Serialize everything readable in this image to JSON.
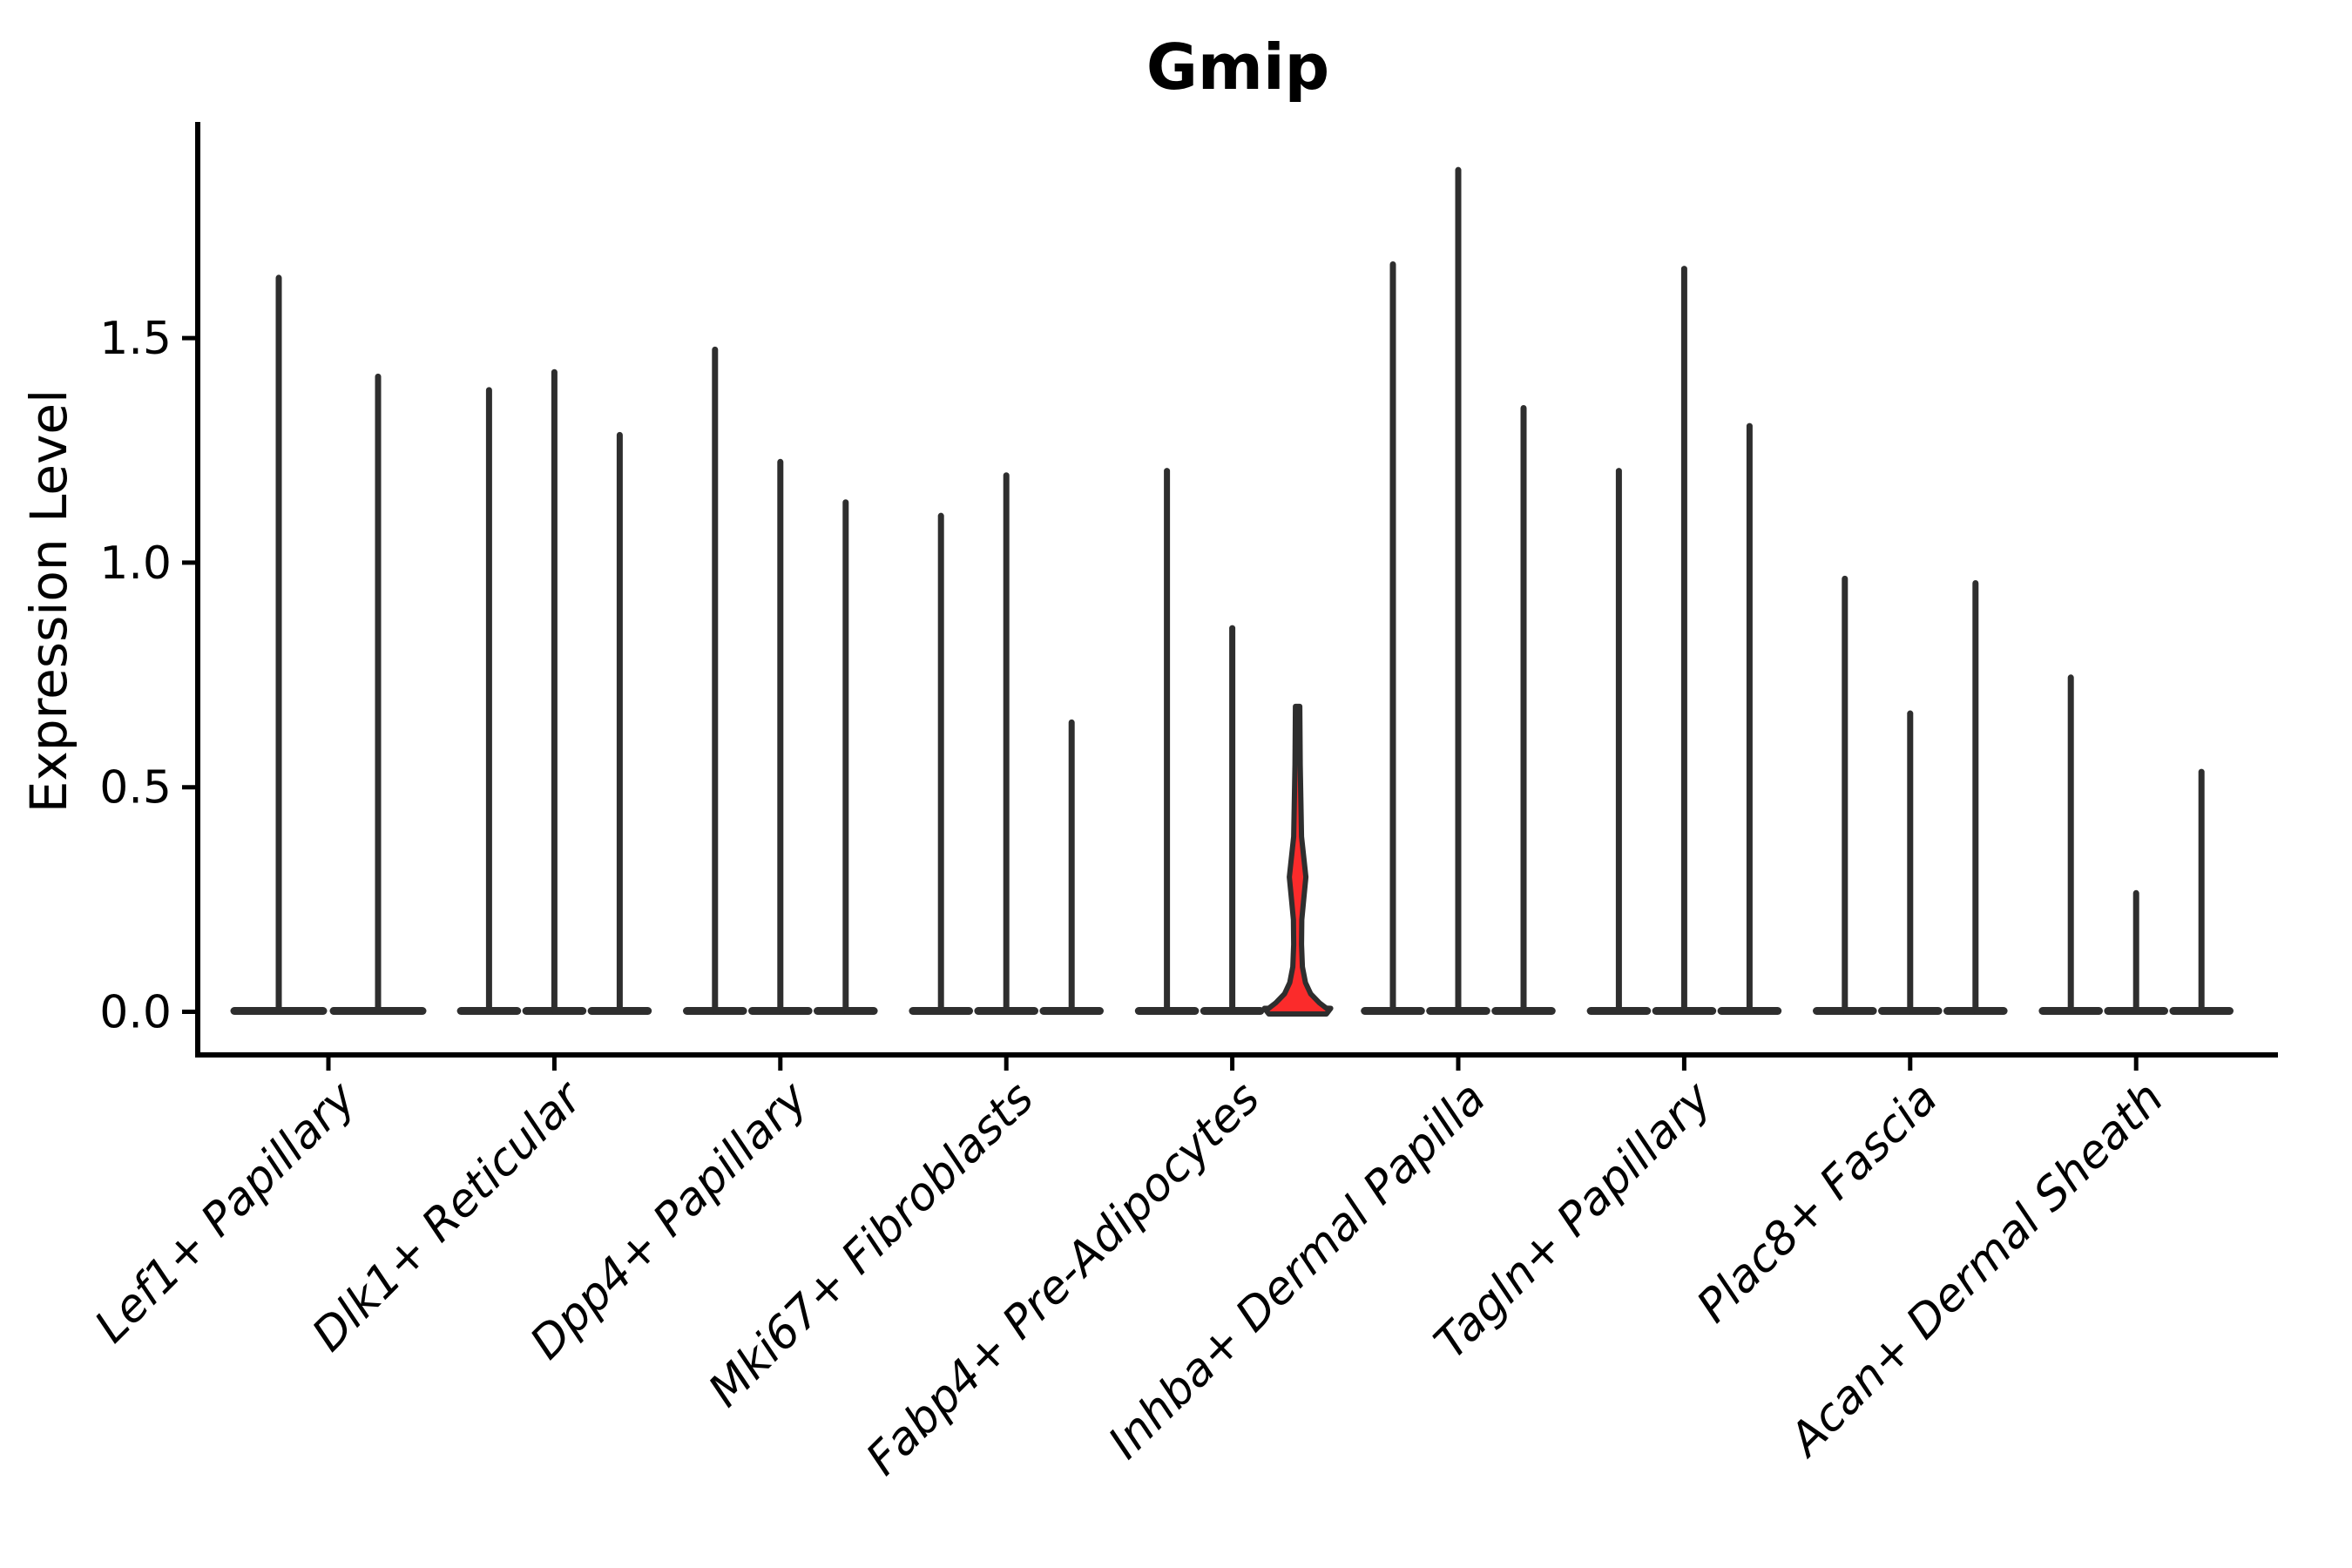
{
  "title": "Gmip",
  "chart_data": {
    "type": "violin",
    "title": "Gmip",
    "xlabel": "",
    "ylabel": "Expression Level",
    "ytick_labels": [
      "0.0",
      "0.5",
      "1.0",
      "1.5"
    ],
    "yticks": [
      0.0,
      0.5,
      1.0,
      1.5
    ],
    "ylim": [
      -0.096,
      1.98
    ],
    "grid": false,
    "legend": "none",
    "categories": [
      "Lef1+ Papillary",
      "Dlk1+ Reticular",
      "Dpp4+ Papillary",
      "Mki67+ Fibroblasts",
      "Fabp4+ Pre-Adipocytes",
      "Inhba+ Dermal Papilla",
      "Tagln+ Papillary",
      "Plac8+ Fascia",
      "Acan+ Dermal Sheath"
    ],
    "groups": [
      {
        "category": "Lef1+ Papillary",
        "violins": [
          {
            "max": 1.64
          },
          {
            "max": 1.42
          }
        ]
      },
      {
        "category": "Dlk1+ Reticular",
        "violins": [
          {
            "max": 1.39
          },
          {
            "max": 1.43
          },
          {
            "max": 1.29
          }
        ]
      },
      {
        "category": "Dpp4+ Papillary",
        "violins": [
          {
            "max": 1.48
          },
          {
            "max": 1.23
          },
          {
            "max": 1.14
          }
        ]
      },
      {
        "category": "Mki67+ Fibroblasts",
        "violins": [
          {
            "max": 1.11
          },
          {
            "max": 1.2
          },
          {
            "max": 0.65
          }
        ]
      },
      {
        "category": "Fabp4+ Pre-Adipocytes",
        "violins": [
          {
            "max": 1.21
          },
          {
            "max": 0.86
          },
          {
            "max": 0.68,
            "highlighted": true,
            "bulge_at": 0.3,
            "fill": "#fb2b2b"
          }
        ]
      },
      {
        "category": "Inhba+ Dermal Papilla",
        "violins": [
          {
            "max": 1.67
          },
          {
            "max": 1.88
          },
          {
            "max": 1.35
          }
        ]
      },
      {
        "category": "Tagln+ Papillary",
        "violins": [
          {
            "max": 1.21
          },
          {
            "max": 1.66
          },
          {
            "max": 1.31
          }
        ]
      },
      {
        "category": "Plac8+ Fascia",
        "violins": [
          {
            "max": 0.97
          },
          {
            "max": 0.67
          },
          {
            "max": 0.96
          }
        ]
      },
      {
        "category": "Acan+ Dermal Sheath",
        "violins": [
          {
            "max": 0.75
          },
          {
            "max": 0.27
          },
          {
            "max": 0.54
          }
        ]
      }
    ],
    "style": {
      "violin_line_color": "#2e2e2e",
      "spine_color": "#000000",
      "text_color": "#000000",
      "highlight_fill": "#fb2b2b",
      "background": "#ffffff"
    }
  }
}
